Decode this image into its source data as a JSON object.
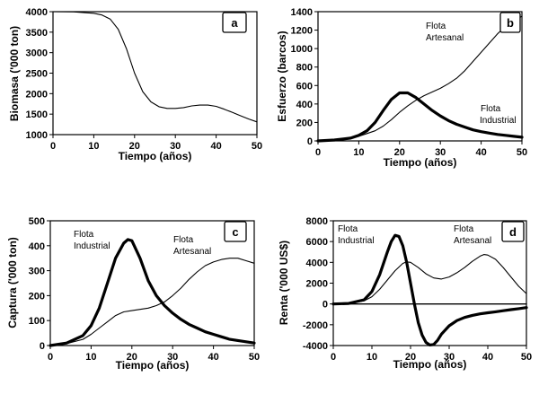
{
  "chart_data": [
    {
      "id": "a",
      "type": "line",
      "letter": "a",
      "xlabel": "Tiempo (años)",
      "ylabel": "Biomasa ('000 ton)",
      "xlim": [
        0,
        50
      ],
      "ylim": [
        1000,
        4000
      ],
      "xticks": [
        0,
        10,
        20,
        30,
        40,
        50
      ],
      "yticks": [
        1000,
        1500,
        2000,
        2500,
        3000,
        3500,
        4000
      ],
      "annotations": [],
      "series": [
        {
          "name": "Biomasa",
          "weight": "thin",
          "x": [
            0,
            5,
            10,
            12,
            14,
            16,
            18,
            20,
            22,
            24,
            26,
            28,
            30,
            32,
            34,
            36,
            38,
            40,
            42,
            44,
            46,
            48,
            50
          ],
          "values": [
            4000,
            3995,
            3960,
            3920,
            3820,
            3570,
            3100,
            2500,
            2050,
            1800,
            1680,
            1640,
            1640,
            1660,
            1700,
            1720,
            1720,
            1690,
            1620,
            1540,
            1460,
            1380,
            1310
          ]
        }
      ]
    },
    {
      "id": "b",
      "type": "line",
      "letter": "b",
      "xlabel": "Tiempo (años)",
      "ylabel": "Esfuerzo (barcos)",
      "xlim": [
        0,
        50
      ],
      "ylim": [
        0,
        1400
      ],
      "xticks": [
        0,
        10,
        20,
        30,
        40,
        50
      ],
      "yticks": [
        0,
        200,
        400,
        600,
        800,
        1000,
        1200,
        1400
      ],
      "annotations": [
        {
          "series": "Flota Artesanal",
          "lines": [
            "Flota",
            "Artesanal"
          ]
        },
        {
          "series": "Flota Industrial",
          "lines": [
            "Flota",
            "Industrial"
          ]
        }
      ],
      "series": [
        {
          "name": "Flota Industrial",
          "weight": "thick",
          "x": [
            0,
            4,
            8,
            10,
            12,
            14,
            16,
            18,
            20,
            22,
            24,
            26,
            28,
            30,
            32,
            34,
            36,
            38,
            40,
            42,
            44,
            46,
            48,
            50
          ],
          "values": [
            0,
            10,
            30,
            60,
            110,
            200,
            330,
            450,
            520,
            520,
            470,
            400,
            330,
            270,
            220,
            180,
            150,
            120,
            100,
            85,
            70,
            60,
            50,
            40
          ]
        },
        {
          "name": "Flota Artesanal",
          "weight": "thin",
          "x": [
            0,
            4,
            8,
            10,
            12,
            14,
            16,
            18,
            20,
            22,
            24,
            26,
            28,
            30,
            32,
            34,
            36,
            38,
            40,
            42,
            44,
            46,
            48,
            50
          ],
          "values": [
            0,
            10,
            30,
            50,
            80,
            110,
            160,
            230,
            310,
            380,
            440,
            490,
            530,
            570,
            620,
            680,
            760,
            860,
            960,
            1060,
            1160,
            1240,
            1300,
            1350
          ]
        }
      ]
    },
    {
      "id": "c",
      "type": "line",
      "letter": "c",
      "xlabel": "Tiempo (años)",
      "ylabel": "Captura ('000 ton)",
      "xlim": [
        0,
        50
      ],
      "ylim": [
        0,
        500
      ],
      "xticks": [
        0,
        10,
        20,
        30,
        40,
        50
      ],
      "yticks": [
        0,
        100,
        200,
        300,
        400,
        500
      ],
      "annotations": [
        {
          "series": "Flota Industrial",
          "lines": [
            "Flota",
            "Industrial"
          ]
        },
        {
          "series": "Flota Artesanal",
          "lines": [
            "Flota",
            "Artesanal"
          ]
        }
      ],
      "series": [
        {
          "name": "Flota Industrial",
          "weight": "thick",
          "x": [
            0,
            4,
            8,
            10,
            12,
            14,
            16,
            18,
            19,
            20,
            22,
            24,
            26,
            28,
            30,
            32,
            34,
            36,
            38,
            40,
            42,
            44,
            46,
            48,
            50
          ],
          "values": [
            0,
            10,
            40,
            80,
            150,
            250,
            350,
            410,
            425,
            420,
            350,
            260,
            200,
            160,
            130,
            105,
            85,
            70,
            55,
            45,
            35,
            25,
            20,
            15,
            10
          ]
        },
        {
          "name": "Flota Artesanal",
          "weight": "thin",
          "x": [
            0,
            4,
            8,
            10,
            12,
            14,
            16,
            18,
            20,
            22,
            24,
            26,
            28,
            30,
            32,
            34,
            36,
            38,
            40,
            42,
            44,
            46,
            48,
            50
          ],
          "values": [
            0,
            8,
            25,
            45,
            70,
            95,
            120,
            135,
            140,
            145,
            150,
            160,
            175,
            200,
            230,
            265,
            295,
            320,
            335,
            345,
            350,
            350,
            340,
            330
          ]
        }
      ]
    },
    {
      "id": "d",
      "type": "line",
      "letter": "d",
      "xlabel": "Tiempo (años)",
      "ylabel": "Renta ('000 US$)",
      "xlim": [
        0,
        50
      ],
      "ylim": [
        -4000,
        8000
      ],
      "xticks": [
        0,
        10,
        20,
        30,
        40,
        50
      ],
      "yticks": [
        -4000,
        -2000,
        0,
        2000,
        4000,
        6000,
        8000
      ],
      "annotations": [
        {
          "series": "Flota Industrial",
          "lines": [
            "Flota",
            "Industrial"
          ]
        },
        {
          "series": "Flota Artesanal",
          "lines": [
            "Flota",
            "Artesanal"
          ]
        }
      ],
      "series": [
        {
          "name": "Flota Industrial",
          "weight": "thick",
          "x": [
            0,
            4,
            8,
            10,
            12,
            14,
            15,
            16,
            17,
            18,
            19,
            20,
            21,
            22,
            23,
            24,
            25,
            26,
            27,
            28,
            30,
            32,
            34,
            36,
            38,
            40,
            42,
            44,
            46,
            48,
            50
          ],
          "values": [
            0,
            50,
            400,
            1200,
            2800,
            5000,
            6000,
            6600,
            6500,
            5600,
            4000,
            2000,
            0,
            -1800,
            -3000,
            -3700,
            -3950,
            -3900,
            -3500,
            -2900,
            -2100,
            -1600,
            -1300,
            -1100,
            -950,
            -850,
            -750,
            -650,
            -550,
            -450,
            -350
          ]
        },
        {
          "name": "Flota Artesanal",
          "weight": "thin",
          "x": [
            0,
            4,
            8,
            10,
            12,
            14,
            16,
            18,
            19,
            20,
            22,
            24,
            26,
            28,
            30,
            32,
            34,
            36,
            38,
            39,
            40,
            42,
            44,
            46,
            48,
            50
          ],
          "values": [
            0,
            50,
            300,
            700,
            1400,
            2300,
            3200,
            3900,
            4050,
            4000,
            3500,
            2900,
            2500,
            2400,
            2600,
            3000,
            3500,
            4100,
            4600,
            4750,
            4700,
            4300,
            3500,
            2600,
            1700,
            1000
          ]
        },
        {
          "name": "cero",
          "weight": "baseline",
          "x": [
            0,
            50
          ],
          "values": [
            0,
            0
          ]
        }
      ]
    }
  ]
}
